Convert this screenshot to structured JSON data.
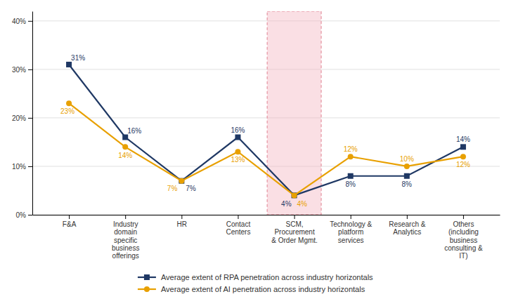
{
  "chart_data": {
    "type": "line",
    "categories": [
      "F&A",
      "Industry\ndomain\nspecific\nbusiness\nofferings",
      "HR",
      "Contact\nCenters",
      "SCM,\nProcurement\n& Order Mgmt.",
      "Technology &\nplatform\nservices",
      "Research &\nAnalytics",
      "Others\n(including\nbusiness\nconsulting &\nIT)"
    ],
    "series": [
      {
        "name": "Average extent of RPA penetration across industry horizontals",
        "color": "#1F3864",
        "marker": "square",
        "values": [
          31,
          16,
          7,
          16,
          4,
          8,
          8,
          14
        ],
        "value_labels": [
          "31%",
          "16%",
          "7%",
          "16%",
          "4%",
          "8%",
          "8%",
          "14%"
        ]
      },
      {
        "name": "Average extent of AI penetration across industry horizontals",
        "color": "#E8A000",
        "marker": "circle",
        "values": [
          23,
          14,
          7,
          13,
          4,
          12,
          10,
          12
        ],
        "value_labels": [
          "23%",
          "14%",
          "7%",
          "13%",
          "4%",
          "12%",
          "10%",
          "12%"
        ]
      }
    ],
    "ylim": [
      0,
      42
    ],
    "yticks": [
      {
        "value": 0,
        "label": "0%"
      },
      {
        "value": 10,
        "label": "10%"
      },
      {
        "value": 20,
        "label": "20%"
      },
      {
        "value": 30,
        "label": "30%"
      },
      {
        "value": 40,
        "label": "40%"
      }
    ],
    "grid": true,
    "data_labels": true,
    "legend": "bottom"
  }
}
